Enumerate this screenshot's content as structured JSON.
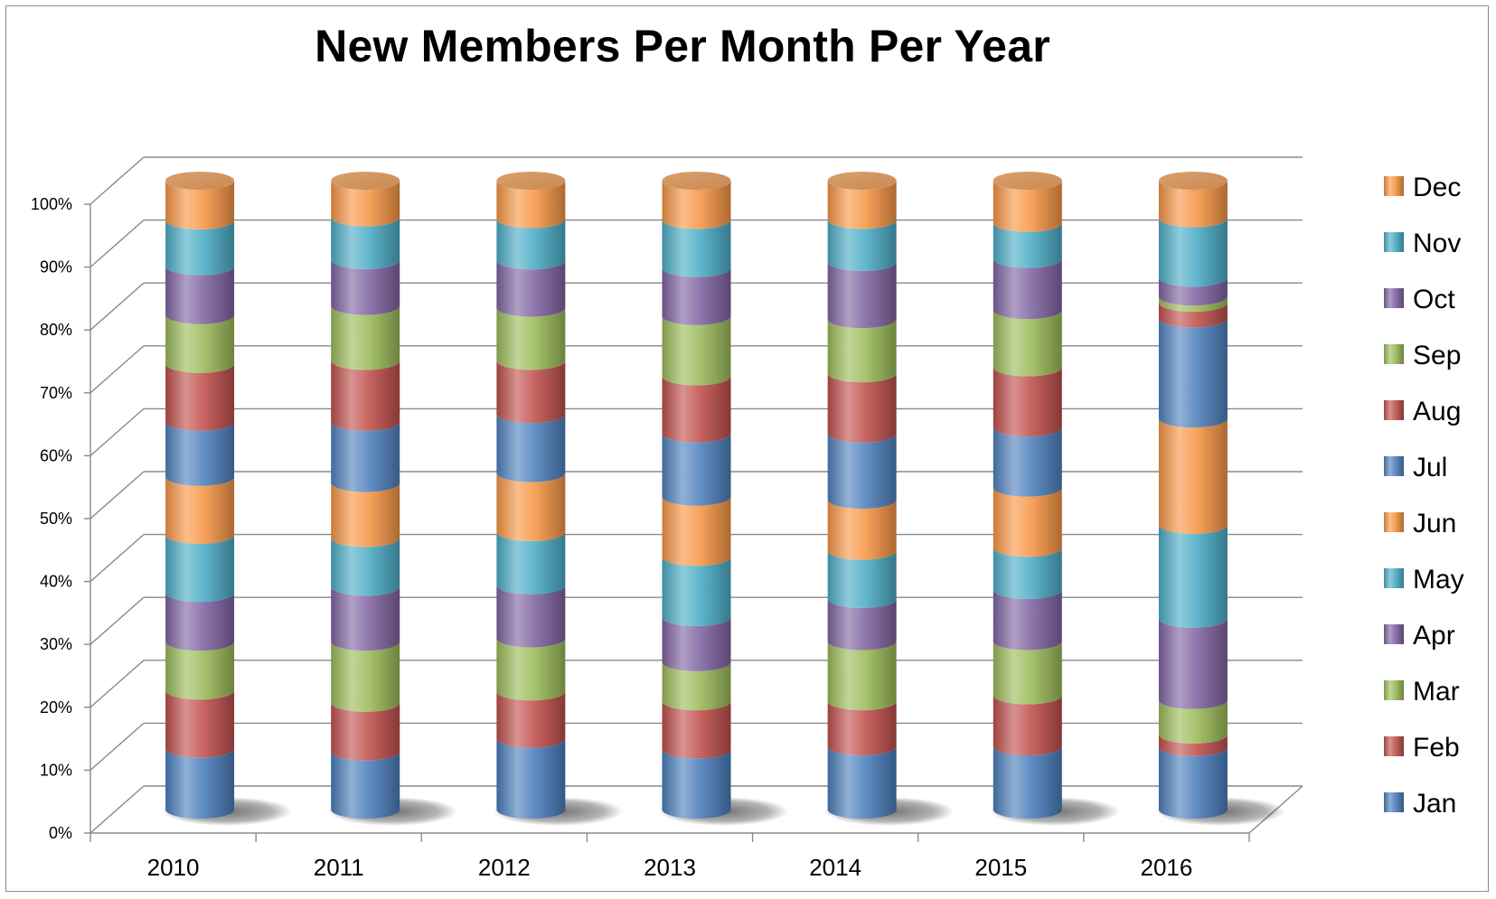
{
  "chart_data": {
    "type": "bar",
    "subtype": "100% stacked 3D cylinder",
    "title": "New Members Per Month Per Year",
    "xlabel": "",
    "ylabel": "",
    "ylim": [
      0,
      100
    ],
    "y_ticks": [
      "0%",
      "10%",
      "20%",
      "30%",
      "40%",
      "50%",
      "60%",
      "70%",
      "80%",
      "90%",
      "100%"
    ],
    "grid": true,
    "legend_position": "right",
    "categories": [
      "2010",
      "2011",
      "2012",
      "2013",
      "2014",
      "2015",
      "2016"
    ],
    "series": [
      {
        "name": "Jan",
        "color": "#4a7ebb",
        "values": [
          10,
          9.5,
          12,
          10,
          10.5,
          10.5,
          10
        ]
      },
      {
        "name": "Feb",
        "color": "#c0504d",
        "values": [
          9.5,
          8,
          8,
          8,
          7.5,
          8.5,
          2
        ]
      },
      {
        "name": "Mar",
        "color": "#9bbb59",
        "values": [
          8,
          10,
          9,
          6.5,
          10,
          9,
          5.5
        ]
      },
      {
        "name": "Apr",
        "color": "#8064a2",
        "values": [
          8,
          9,
          9,
          7.5,
          7,
          8.5,
          13
        ]
      },
      {
        "name": "May",
        "color": "#4bacc6",
        "values": [
          9.5,
          8,
          9,
          10,
          8,
          7,
          15
        ]
      },
      {
        "name": "Jun",
        "color": "#f79646",
        "values": [
          9.5,
          9,
          10,
          10,
          8.5,
          10,
          17
        ]
      },
      {
        "name": "Jul",
        "color": "#4f81bd",
        "values": [
          9,
          10,
          10,
          10.5,
          11,
          10,
          16
        ]
      },
      {
        "name": "Aug",
        "color": "#c0504d",
        "values": [
          9.5,
          10,
          9,
          9.5,
          10,
          10,
          2.5
        ]
      },
      {
        "name": "Sep",
        "color": "#9bbb59",
        "values": [
          8,
          9,
          9,
          10,
          9,
          9.5,
          1
        ]
      },
      {
        "name": "Oct",
        "color": "#8064a2",
        "values": [
          8,
          7.5,
          8,
          8,
          9.5,
          8.5,
          3
        ]
      },
      {
        "name": "Nov",
        "color": "#4bacc6",
        "values": [
          7.5,
          7,
          7,
          8,
          7,
          6,
          9.5
        ]
      },
      {
        "name": "Dec",
        "color": "#f79646",
        "values": [
          6.5,
          6,
          6.5,
          6.5,
          6.5,
          7,
          6
        ]
      }
    ]
  }
}
